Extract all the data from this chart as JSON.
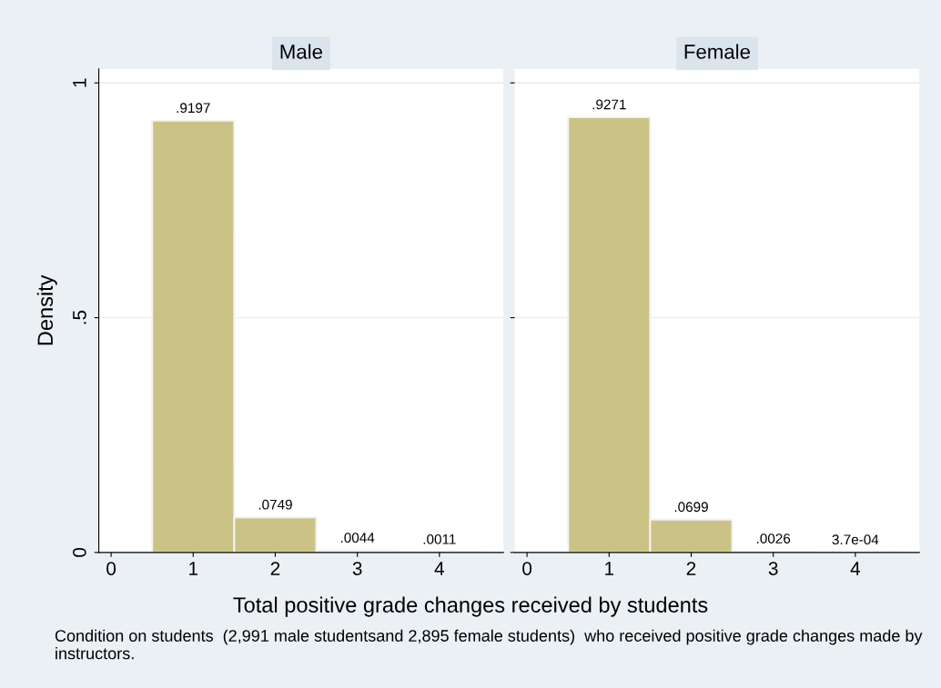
{
  "chart_data": [
    {
      "type": "histogram",
      "title": "Male",
      "bins": [
        0.5,
        1.5,
        2.5,
        3.5,
        4.5
      ],
      "values": [
        0.9197,
        0.0749,
        0.0044,
        0.0011
      ],
      "value_labels": [
        ".9197",
        ".0749",
        ".0044",
        ".0011"
      ],
      "color": "#cbc385",
      "xlim": [
        -0.15,
        4.78
      ],
      "xticks": [
        0,
        1,
        2,
        3,
        4
      ],
      "ylim": [
        0,
        1.03
      ],
      "yticks": [
        0,
        {
          "value": 0.5,
          "label": ".5"
        },
        1
      ],
      "ylabel": "Density",
      "xlabel": "Total positive grade changes received by students",
      "annotations": [
        "Condition on students  (2,991 male studentsand 2,895 female students)  who received positive grade changes made by instructors."
      ],
      "grid": "y"
    },
    {
      "type": "histogram",
      "title": "Female",
      "bins": [
        0.5,
        1.5,
        2.5,
        3.5,
        4.5
      ],
      "values": [
        0.9271,
        0.0699,
        0.0026,
        0.00037
      ],
      "value_labels": [
        ".9271",
        ".0699",
        ".0026",
        "3.7e-04"
      ],
      "color": "#cbc385",
      "xlim": [
        -0.15,
        4.78
      ],
      "xticks": [
        0,
        1,
        2,
        3,
        4
      ],
      "ylim": [
        0,
        1.03
      ],
      "yticks": [
        0,
        0.5,
        1
      ],
      "tick_labels": "x",
      "grid": "y"
    }
  ]
}
